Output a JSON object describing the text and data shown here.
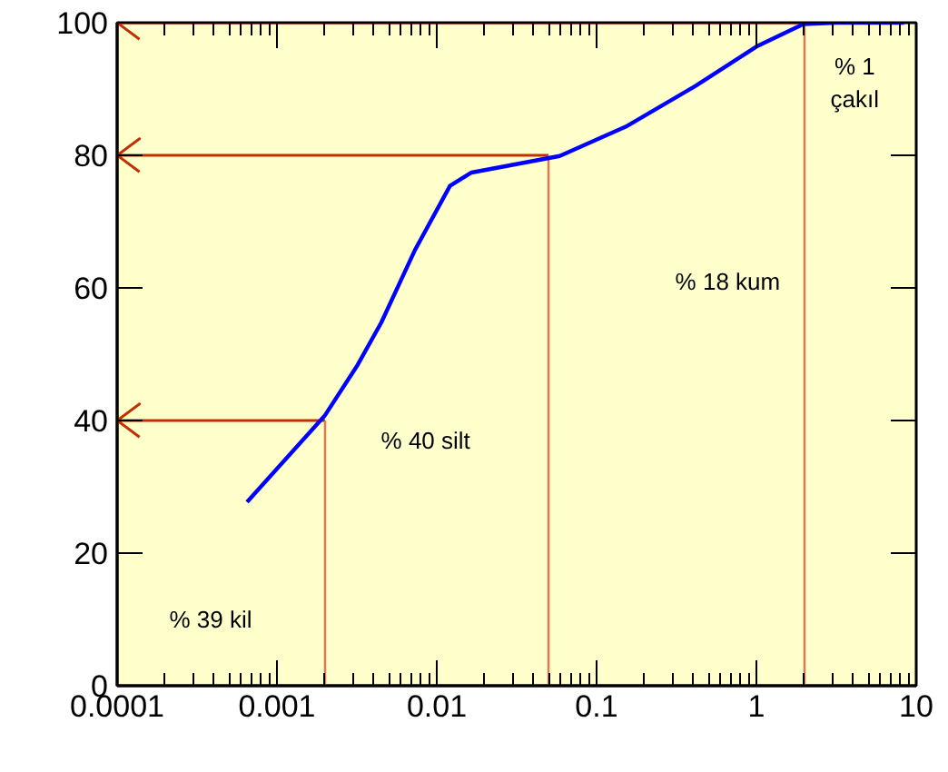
{
  "chart_data": {
    "type": "line",
    "log": "x",
    "grid": false,
    "marker": "none",
    "line_style": "solid",
    "x": [
      0.00065,
      0.002,
      0.0032,
      0.0045,
      0.0073,
      0.0121,
      0.0165,
      0.0588,
      0.152,
      0.418,
      1.0,
      1.97,
      3.18,
      8.4
    ],
    "series": [
      {
        "color": "#0000ff",
        "values": [
          27.7,
          40.8,
          48.4,
          54.8,
          65.7,
          75.4,
          77.4,
          79.9,
          84.3,
          90.5,
          96.4,
          99.8,
          100,
          100
        ]
      }
    ],
    "xlim": [
      0.0001,
      10
    ],
    "xticks": [
      0.0001,
      0.001,
      0.01,
      0.1,
      1,
      10
    ],
    "ylim": [
      0,
      100
    ],
    "yticks": [
      0,
      20,
      40,
      60,
      80,
      100
    ],
    "ref_lines": [
      {
        "axis": "y",
        "value": 40,
        "color": "#c03000"
      },
      {
        "axis": "y",
        "value": 80,
        "color": "#c03000"
      },
      {
        "axis": "y",
        "value": 100,
        "color": "#c03000"
      },
      {
        "axis": "x",
        "value": 0.002,
        "color": "#e8734a"
      },
      {
        "axis": "x",
        "value": 0.05,
        "color": "#e8734a"
      },
      {
        "axis": "x",
        "value": 2,
        "color": "#e8734a"
      }
    ],
    "annotations": [
      "% 39 kil",
      "% 40 silt",
      "% 18 kum",
      "% 1\nçakıl"
    ]
  }
}
